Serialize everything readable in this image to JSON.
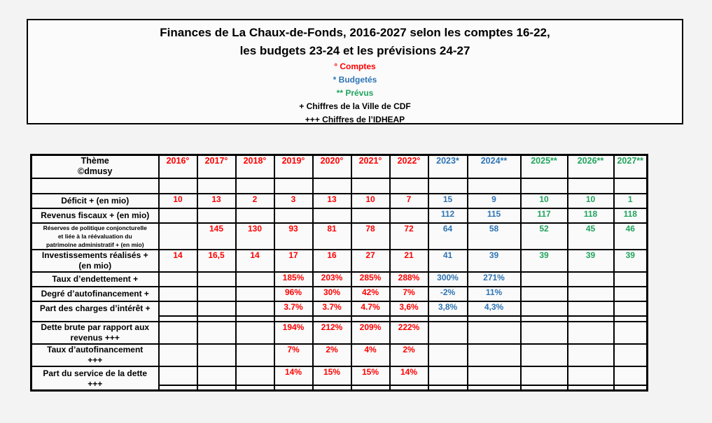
{
  "title_box": {
    "line1": "Finances de La Chaux-de-Fonds, 2016-2027 selon les comptes 16-22,",
    "line2": "les budgets 23-24 et les prévisions 24-27",
    "legend": [
      {
        "text": "° Comptes",
        "color": "red"
      },
      {
        "text": "* Budgetés",
        "color": "blue"
      },
      {
        "text": "** Prévus",
        "color": "green"
      },
      {
        "text": "+ Chiffres de la Ville de CDF",
        "color": "black"
      },
      {
        "text": "+++ Chiffres de l’IDHEAP",
        "color": "black"
      }
    ]
  },
  "colors": {
    "red": "#FF0000",
    "blue": "#2E74B5",
    "green": "#21A45D",
    "black": "#000000"
  },
  "table": {
    "header": {
      "label": "Thème\n©dmusy",
      "years": [
        {
          "label": "2016°",
          "color": "red"
        },
        {
          "label": "2017°",
          "color": "red"
        },
        {
          "label": "2018°",
          "color": "red"
        },
        {
          "label": "2019°",
          "color": "red"
        },
        {
          "label": "2020°",
          "color": "red"
        },
        {
          "label": "2021°",
          "color": "red"
        },
        {
          "label": "2022°",
          "color": "red"
        },
        {
          "label": "2023*",
          "color": "blue"
        },
        {
          "label": "2024**",
          "color": "blue"
        },
        {
          "label": "2025**",
          "color": "green"
        },
        {
          "label": "2026**",
          "color": "green"
        },
        {
          "label": "2027**",
          "color": "green"
        }
      ]
    },
    "column_colors": [
      "red",
      "red",
      "red",
      "red",
      "red",
      "red",
      "red",
      "blue",
      "blue",
      "green",
      "green",
      "green"
    ],
    "rows": [
      {
        "label": "Déficit + (en mio)",
        "values": [
          "10",
          "13",
          "2",
          "3",
          "13",
          "10",
          "7",
          "15",
          "9",
          "10",
          "10",
          "1"
        ]
      },
      {
        "label": "Revenus fiscaux + (en mio)",
        "values": [
          "",
          "",
          "",
          "",
          "",
          "",
          "",
          "112",
          "115",
          "117",
          "118",
          "118"
        ]
      },
      {
        "label": "Réserves de politique conjoncturelle\net liée à la réévaluation du\npatrimoine administratif + (en mio)",
        "small": true,
        "values": [
          "",
          "145",
          "130",
          "93",
          "81",
          "78",
          "72",
          "64",
          "58",
          "52",
          "45",
          "46"
        ]
      },
      {
        "label": "Investissements réalisés +\n(en mio)",
        "values": [
          "14",
          "16,5",
          "14",
          "17",
          "16",
          "27",
          "21",
          "41",
          "39",
          "39",
          "39",
          "39"
        ]
      },
      {
        "label": "Taux d’endettement +",
        "values": [
          "",
          "",
          "",
          "185%",
          "203%",
          "285%",
          "288%",
          "300%",
          "271%",
          "",
          "",
          ""
        ]
      },
      {
        "label": "Degré d’autofinancement +",
        "values": [
          "",
          "",
          "",
          "96%",
          "30%",
          "42%",
          "7%",
          "-2%",
          "11%",
          "",
          "",
          ""
        ]
      },
      {
        "label": "Part des charges d’intérêt +",
        "values": [
          "",
          "",
          "",
          "3.7%",
          "3.7%",
          "4.7%",
          "3,6%",
          "3,8%",
          "4,3%",
          "",
          "",
          ""
        ],
        "spacer_after": 8
      },
      {
        "label": "Dette brute par rapport aux\nrevenus +++",
        "values": [
          "",
          "",
          "",
          "194%",
          "212%",
          "209%",
          "222%",
          "",
          "",
          "",
          "",
          ""
        ]
      },
      {
        "label": "Taux d’autofinancement\n+++",
        "values": [
          "",
          "",
          "",
          "7%",
          "2%",
          "4%",
          "2%",
          "",
          "",
          "",
          "",
          ""
        ]
      },
      {
        "label": "Part du service de la dette\n+++",
        "values": [
          "",
          "",
          "",
          "14%",
          "15%",
          "15%",
          "14%",
          "",
          "",
          "",
          "",
          ""
        ],
        "spacer_after": 5
      }
    ]
  }
}
